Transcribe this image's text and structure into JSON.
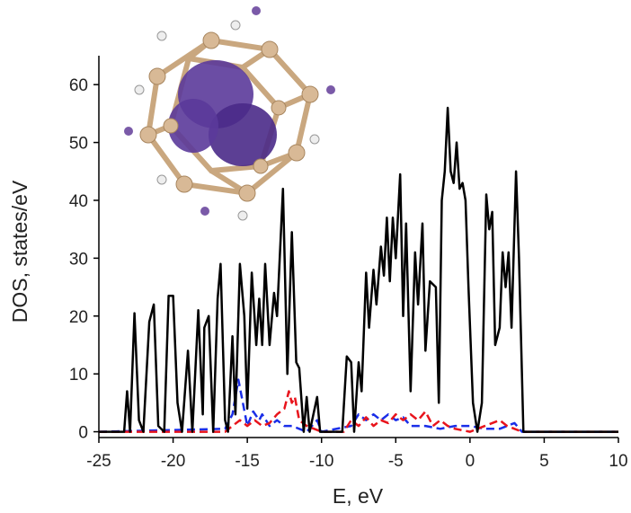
{
  "chart_data": {
    "type": "line",
    "x_label": "E, eV",
    "y_label": "DOS, states/eV",
    "xlim": [
      -25,
      10
    ],
    "ylim": [
      -1,
      65
    ],
    "xticks": [
      -25,
      -20,
      -15,
      -10,
      -5,
      0,
      5,
      10
    ],
    "yticks": [
      0,
      10,
      20,
      30,
      40,
      50,
      60
    ],
    "series": [
      {
        "color": "#000000",
        "dash": "solid",
        "x": [
          -25,
          -23.3,
          -23.1,
          -22.9,
          -22.6,
          -22.3,
          -22.0,
          -21.6,
          -21.3,
          -21.0,
          -20.6,
          -20.3,
          -20.0,
          -19.7,
          -19.4,
          -19.0,
          -18.7,
          -18.3,
          -18.0,
          -17.9,
          -17.6,
          -17.3,
          -17.0,
          -16.8,
          -16.5,
          -16.3,
          -16.0,
          -15.8,
          -15.5,
          -15.2,
          -15.0,
          -14.7,
          -14.4,
          -14.2,
          -14.0,
          -13.8,
          -13.5,
          -13.2,
          -13.0,
          -12.6,
          -12.3,
          -12.0,
          -11.7,
          -11.5,
          -11.2,
          -11.0,
          -10.8,
          -10.3,
          -10.1,
          -8.6,
          -8.3,
          -8.0,
          -7.8,
          -7.5,
          -7.3,
          -7.0,
          -6.8,
          -6.5,
          -6.3,
          -6.0,
          -5.8,
          -5.6,
          -5.4,
          -5.2,
          -5.0,
          -4.7,
          -4.5,
          -4.3,
          -4.0,
          -3.7,
          -3.5,
          -3.2,
          -3.0,
          -2.7,
          -2.3,
          -2.1,
          -1.9,
          -1.7,
          -1.5,
          -1.3,
          -1.1,
          -0.9,
          -0.7,
          -0.5,
          -0.3,
          -0.1,
          0.2,
          0.5,
          0.8,
          1.1,
          1.3,
          1.5,
          1.7,
          2.0,
          2.2,
          2.4,
          2.6,
          2.8,
          3.1,
          3.3,
          3.6,
          10
        ],
        "values": [
          0,
          0,
          7,
          0,
          20.5,
          2,
          0,
          19,
          22,
          1,
          0,
          23.5,
          23.5,
          5,
          0,
          14,
          0,
          21,
          3,
          18,
          20,
          0,
          23,
          29,
          2,
          0,
          16.5,
          3,
          29,
          20,
          4,
          27.5,
          15,
          23,
          15,
          29,
          15,
          24,
          20,
          42,
          10,
          34.5,
          12,
          11,
          0,
          6,
          0,
          6,
          0,
          0,
          13,
          12,
          0,
          12,
          7,
          27.5,
          18,
          28,
          22,
          32,
          27,
          37,
          26,
          37,
          30,
          44.5,
          20,
          36,
          7,
          31,
          22,
          36,
          14,
          26,
          25,
          5,
          40,
          45,
          56,
          45,
          43,
          50,
          42,
          43,
          40,
          25,
          5,
          0,
          5,
          41,
          35,
          38,
          15,
          18,
          31,
          25,
          31,
          18,
          45,
          30,
          0,
          0
        ]
      },
      {
        "color": "#e8141c",
        "dash": "dashed",
        "x": [
          -25,
          -16.5,
          -16,
          -15.5,
          -15,
          -14.5,
          -14,
          -13.5,
          -13,
          -12.5,
          -12.2,
          -12,
          -11.8,
          -11.5,
          -11,
          -10.5,
          -10,
          -8.5,
          -8,
          -7.5,
          -7,
          -6.5,
          -6,
          -5.5,
          -5,
          -4.5,
          -4,
          -3.5,
          -3,
          -2.5,
          -2,
          -1.5,
          -1,
          0,
          1,
          2,
          2.5,
          3,
          3.5,
          10
        ],
        "values": [
          0,
          0,
          1,
          2,
          1,
          2,
          1,
          1.5,
          3,
          4,
          7,
          5,
          6,
          2,
          1,
          0.5,
          0,
          0,
          2,
          1,
          2.5,
          1,
          2,
          1.5,
          3,
          2,
          3,
          2,
          3.5,
          1,
          2,
          1,
          0.5,
          0,
          1,
          2,
          1,
          0.5,
          0,
          0
        ]
      },
      {
        "color": "#1a2ee8",
        "dash": "dashed",
        "x": [
          -25,
          -20,
          -16.5,
          -16,
          -15.6,
          -15.3,
          -15,
          -14.6,
          -14.2,
          -14,
          -13.5,
          -13,
          -12.5,
          -12,
          -11.5,
          -11,
          -10.3,
          -10,
          -8,
          -7.5,
          -7,
          -6.5,
          -6,
          -5.5,
          -5,
          -4.5,
          -4,
          -3,
          -2,
          -1,
          0,
          1,
          2,
          3,
          3.5,
          10
        ],
        "values": [
          0,
          0.3,
          0.5,
          3,
          9,
          5,
          1,
          3.5,
          2,
          3,
          1,
          2,
          1,
          1,
          0.5,
          0,
          2,
          0,
          1,
          3,
          2,
          3,
          2,
          3,
          2,
          2.5,
          1,
          1,
          0.5,
          1,
          1,
          0.5,
          0.5,
          1.5,
          0,
          0
        ]
      }
    ]
  }
}
